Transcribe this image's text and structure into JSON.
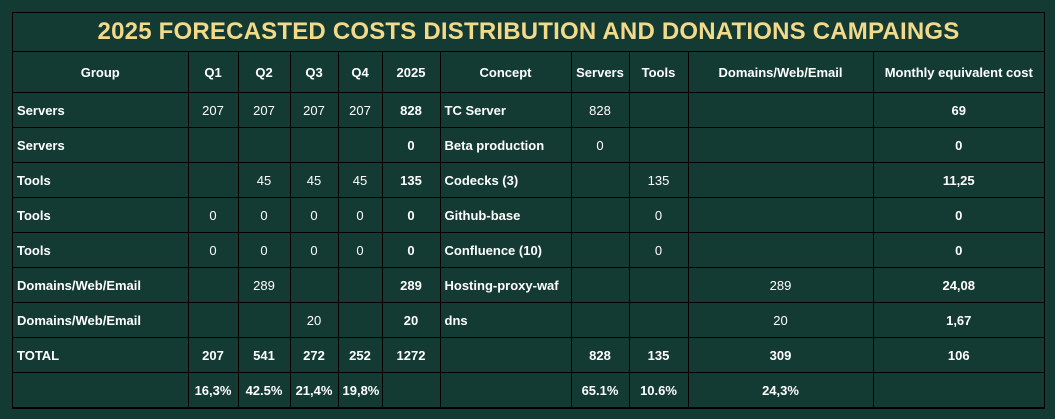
{
  "title": "2025 FORECASTED COSTS DISTRIBUTION AND DONATIONS CAMPAINGS",
  "headers": [
    "Group",
    "Q1",
    "Q2",
    "Q3",
    "Q4",
    "2025",
    "Concept",
    "Servers",
    "Tools",
    "Domains/Web/Email",
    "Monthly equivalent cost"
  ],
  "rows": [
    [
      "Servers",
      "207",
      "207",
      "207",
      "207",
      "828",
      "TC Server",
      "828",
      "",
      "",
      "69"
    ],
    [
      "Servers",
      "",
      "",
      "",
      "",
      "0",
      "Beta production",
      "0",
      "",
      "",
      "0"
    ],
    [
      "Tools",
      "",
      "45",
      "45",
      "45",
      "135",
      "Codecks (3)",
      "",
      "135",
      "",
      "11,25"
    ],
    [
      "Tools",
      "0",
      "0",
      "0",
      "0",
      "0",
      "Github-base",
      "",
      "0",
      "",
      "0"
    ],
    [
      "Tools",
      "0",
      "0",
      "0",
      "0",
      "0",
      "Confluence (10)",
      "",
      "0",
      "",
      "0"
    ],
    [
      "Domains/Web/Email",
      "",
      "289",
      "",
      "",
      "289",
      "Hosting-proxy-waf",
      "",
      "",
      "289",
      "24,08"
    ],
    [
      "Domains/Web/Email",
      "",
      "",
      "20",
      "",
      "20",
      "dns",
      "",
      "",
      "20",
      "1,67"
    ]
  ],
  "total": [
    "TOTAL",
    "207",
    "541",
    "272",
    "252",
    "1272",
    "",
    "828",
    "135",
    "309",
    "106"
  ],
  "percent": [
    "",
    "16,3%",
    "42.5%",
    "21,4%",
    "19,8%",
    "",
    "",
    "65.1%",
    "10.6%",
    "24,3%",
    ""
  ]
}
